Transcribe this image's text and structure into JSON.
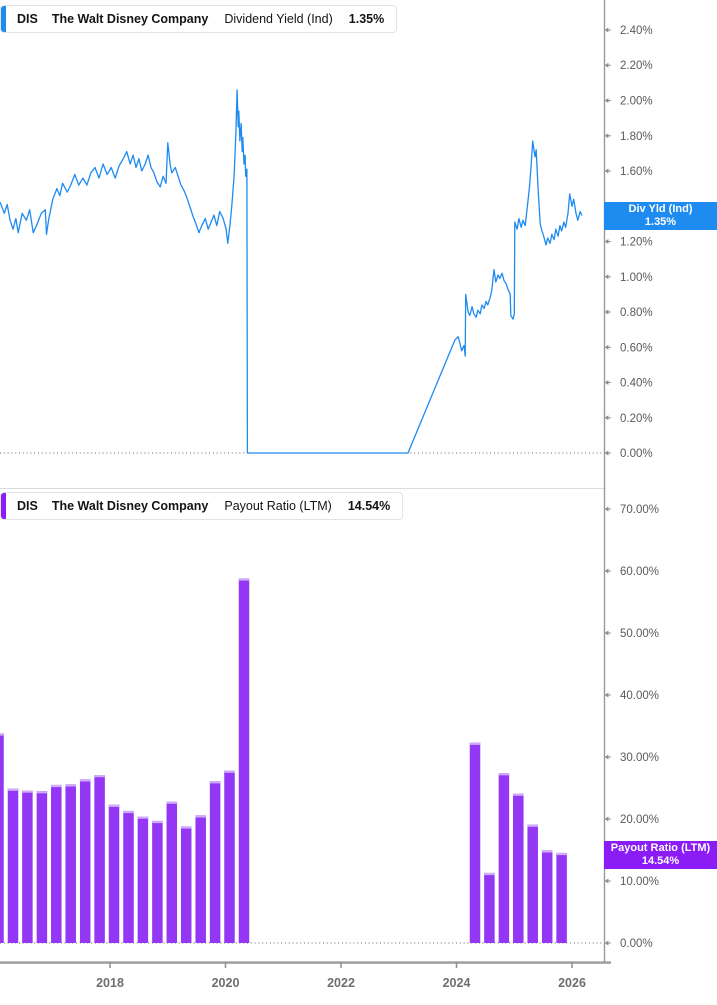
{
  "panels": [
    {
      "id": "dividend-yield",
      "header": {
        "ticker": "DIS",
        "company": "The Walt Disney Company",
        "metric": "Dividend Yield (Ind)",
        "value": "1.35%"
      },
      "badge": {
        "title": "Div Yld (Ind)",
        "value": "1.35%"
      },
      "accent_color": "#1e8bf0"
    },
    {
      "id": "payout-ratio",
      "header": {
        "ticker": "DIS",
        "company": "The Walt Disney Company",
        "metric": "Payout Ratio (LTM)",
        "value": "14.54%"
      },
      "badge": {
        "title": "Payout Ratio (LTM)",
        "value": "14.54%"
      },
      "accent_color": "#8b1cf5"
    }
  ],
  "axis_style": {
    "tick_label_color": "#5a5a5a",
    "year_label_color": "#6f6f6f",
    "axis_line_color": "#9a9a9a",
    "separator_color": "#dcdcdc",
    "zero_line_color": "#666666"
  },
  "chart_data": [
    {
      "type": "line",
      "title": "DIS Dividend Yield (Ind)",
      "name": "Div Yld (Ind)",
      "unit": "%",
      "color": "#1e8bf0",
      "last_value": 1.35,
      "ylim": [
        0,
        2.4
      ],
      "y_ticks": [
        0,
        0.2,
        0.4,
        0.6,
        0.8,
        1.0,
        1.2,
        1.4,
        1.6,
        1.8,
        2.0,
        2.2,
        2.4
      ],
      "y_tick_labels": [
        "0.00%",
        "0.20%",
        "0.40%",
        "0.60%",
        "0.80%",
        "1.00%",
        "1.20%",
        "1.40%",
        "1.60%",
        "1.80%",
        "2.00%",
        "2.20%",
        "2.40%"
      ],
      "zero_line_dotted": true,
      "grid": false,
      "legend_position": "top-left",
      "points": [
        [
          2016.1,
          1.42
        ],
        [
          2016.17,
          1.36
        ],
        [
          2016.22,
          1.41
        ],
        [
          2016.27,
          1.32
        ],
        [
          2016.32,
          1.27
        ],
        [
          2016.37,
          1.33
        ],
        [
          2016.41,
          1.25
        ],
        [
          2016.48,
          1.36
        ],
        [
          2016.55,
          1.32
        ],
        [
          2016.61,
          1.38
        ],
        [
          2016.67,
          1.25
        ],
        [
          2016.74,
          1.3
        ],
        [
          2016.81,
          1.36
        ],
        [
          2016.88,
          1.38
        ],
        [
          2016.9,
          1.24
        ],
        [
          2016.94,
          1.33
        ],
        [
          2017.01,
          1.44
        ],
        [
          2017.08,
          1.5
        ],
        [
          2017.13,
          1.46
        ],
        [
          2017.18,
          1.53
        ],
        [
          2017.26,
          1.48
        ],
        [
          2017.32,
          1.52
        ],
        [
          2017.39,
          1.58
        ],
        [
          2017.46,
          1.52
        ],
        [
          2017.53,
          1.56
        ],
        [
          2017.6,
          1.52
        ],
        [
          2017.67,
          1.59
        ],
        [
          2017.74,
          1.62
        ],
        [
          2017.81,
          1.56
        ],
        [
          2017.88,
          1.64
        ],
        [
          2017.95,
          1.58
        ],
        [
          2018.02,
          1.62
        ],
        [
          2018.09,
          1.56
        ],
        [
          2018.16,
          1.63
        ],
        [
          2018.23,
          1.67
        ],
        [
          2018.29,
          1.71
        ],
        [
          2018.35,
          1.64
        ],
        [
          2018.4,
          1.69
        ],
        [
          2018.45,
          1.62
        ],
        [
          2018.5,
          1.67
        ],
        [
          2018.55,
          1.6
        ],
        [
          2018.61,
          1.64
        ],
        [
          2018.66,
          1.69
        ],
        [
          2018.71,
          1.62
        ],
        [
          2018.76,
          1.59
        ],
        [
          2018.81,
          1.54
        ],
        [
          2018.87,
          1.51
        ],
        [
          2018.92,
          1.57
        ],
        [
          2018.97,
          1.53
        ],
        [
          2019.0,
          1.76
        ],
        [
          2019.04,
          1.64
        ],
        [
          2019.07,
          1.59
        ],
        [
          2019.13,
          1.62
        ],
        [
          2019.18,
          1.57
        ],
        [
          2019.23,
          1.52
        ],
        [
          2019.28,
          1.49
        ],
        [
          2019.33,
          1.45
        ],
        [
          2019.39,
          1.39
        ],
        [
          2019.44,
          1.34
        ],
        [
          2019.49,
          1.3
        ],
        [
          2019.54,
          1.25
        ],
        [
          2019.59,
          1.29
        ],
        [
          2019.65,
          1.33
        ],
        [
          2019.7,
          1.27
        ],
        [
          2019.75,
          1.31
        ],
        [
          2019.8,
          1.35
        ],
        [
          2019.85,
          1.29
        ],
        [
          2019.9,
          1.37
        ],
        [
          2019.96,
          1.33
        ],
        [
          2020.01,
          1.27
        ],
        [
          2020.04,
          1.19
        ],
        [
          2020.08,
          1.3
        ],
        [
          2020.11,
          1.41
        ],
        [
          2020.15,
          1.58
        ],
        [
          2020.18,
          1.82
        ],
        [
          2020.2,
          2.06
        ],
        [
          2020.22,
          1.85
        ],
        [
          2020.23,
          1.94
        ],
        [
          2020.25,
          1.77
        ],
        [
          2020.27,
          1.87
        ],
        [
          2020.29,
          1.71
        ],
        [
          2020.3,
          1.79
        ],
        [
          2020.32,
          1.64
        ],
        [
          2020.34,
          1.69
        ],
        [
          2020.35,
          1.57
        ],
        [
          2020.37,
          1.61
        ],
        [
          2020.38,
          0.0
        ],
        [
          2023.16,
          0.0
        ],
        [
          2023.97,
          0.64
        ],
        [
          2024.03,
          0.66
        ],
        [
          2024.06,
          0.62
        ],
        [
          2024.09,
          0.58
        ],
        [
          2024.13,
          0.61
        ],
        [
          2024.15,
          0.55
        ],
        [
          2024.16,
          0.9
        ],
        [
          2024.2,
          0.8
        ],
        [
          2024.23,
          0.78
        ],
        [
          2024.27,
          0.83
        ],
        [
          2024.3,
          0.79
        ],
        [
          2024.34,
          0.77
        ],
        [
          2024.37,
          0.81
        ],
        [
          2024.41,
          0.79
        ],
        [
          2024.44,
          0.84
        ],
        [
          2024.48,
          0.82
        ],
        [
          2024.51,
          0.86
        ],
        [
          2024.54,
          0.84
        ],
        [
          2024.58,
          0.88
        ],
        [
          2024.61,
          0.92
        ],
        [
          2024.65,
          1.04
        ],
        [
          2024.68,
          0.97
        ],
        [
          2024.72,
          1.01
        ],
        [
          2024.75,
          0.99
        ],
        [
          2024.79,
          1.02
        ],
        [
          2024.82,
          0.98
        ],
        [
          2024.86,
          0.96
        ],
        [
          2024.89,
          0.93
        ],
        [
          2024.93,
          0.9
        ],
        [
          2024.94,
          0.78
        ],
        [
          2024.98,
          0.76
        ],
        [
          2025.0,
          0.79
        ],
        [
          2025.01,
          1.31
        ],
        [
          2025.05,
          1.27
        ],
        [
          2025.08,
          1.33
        ],
        [
          2025.12,
          1.28
        ],
        [
          2025.15,
          1.32
        ],
        [
          2025.19,
          1.29
        ],
        [
          2025.22,
          1.38
        ],
        [
          2025.26,
          1.5
        ],
        [
          2025.29,
          1.62
        ],
        [
          2025.32,
          1.77
        ],
        [
          2025.36,
          1.68
        ],
        [
          2025.38,
          1.72
        ],
        [
          2025.41,
          1.52
        ],
        [
          2025.45,
          1.3
        ],
        [
          2025.48,
          1.26
        ],
        [
          2025.51,
          1.23
        ],
        [
          2025.55,
          1.18
        ],
        [
          2025.58,
          1.22
        ],
        [
          2025.62,
          1.19
        ],
        [
          2025.65,
          1.24
        ],
        [
          2025.69,
          1.21
        ],
        [
          2025.72,
          1.27
        ],
        [
          2025.76,
          1.23
        ],
        [
          2025.79,
          1.29
        ],
        [
          2025.82,
          1.26
        ],
        [
          2025.86,
          1.31
        ],
        [
          2025.89,
          1.28
        ],
        [
          2025.93,
          1.36
        ],
        [
          2025.96,
          1.47
        ],
        [
          2026.0,
          1.4
        ],
        [
          2026.03,
          1.44
        ],
        [
          2026.07,
          1.36
        ],
        [
          2026.1,
          1.32
        ],
        [
          2026.14,
          1.37
        ],
        [
          2026.17,
          1.35
        ]
      ]
    },
    {
      "type": "bar",
      "title": "DIS Payout Ratio (LTM)",
      "name": "Payout Ratio (LTM)",
      "unit": "%",
      "color": "#9437f5",
      "bar_cap_color": "#cfadf8",
      "last_value": 14.54,
      "ylim": [
        0,
        70
      ],
      "y_ticks": [
        0,
        10,
        20,
        30,
        40,
        50,
        60,
        70
      ],
      "y_tick_labels": [
        "0.00%",
        "10.00%",
        "20.00%",
        "30.00%",
        "40.00%",
        "50.00%",
        "60.00%",
        "70.00%"
      ],
      "zero_line_dotted": true,
      "grid": false,
      "x_tick_labels": [
        "2018",
        "2020",
        "2022",
        "2024",
        "2026"
      ],
      "x_tick_years": [
        2018,
        2020,
        2022,
        2024,
        2026
      ],
      "bars": [
        [
          2016.07,
          33.8
        ],
        [
          2016.32,
          24.9
        ],
        [
          2016.57,
          24.6
        ],
        [
          2016.82,
          24.5
        ],
        [
          2017.07,
          25.5
        ],
        [
          2017.32,
          25.6
        ],
        [
          2017.57,
          26.4
        ],
        [
          2017.82,
          27.1
        ],
        [
          2018.07,
          22.3
        ],
        [
          2018.32,
          21.3
        ],
        [
          2018.57,
          20.4
        ],
        [
          2018.82,
          19.7
        ],
        [
          2019.07,
          22.8
        ],
        [
          2019.32,
          18.8
        ],
        [
          2019.57,
          20.6
        ],
        [
          2019.82,
          26.1
        ],
        [
          2020.07,
          27.8
        ],
        [
          2020.32,
          58.8
        ],
        [
          2024.32,
          32.3
        ],
        [
          2024.57,
          11.3
        ],
        [
          2024.82,
          27.4
        ],
        [
          2025.07,
          24.1
        ],
        [
          2025.32,
          19.1
        ],
        [
          2025.57,
          14.95
        ],
        [
          2025.82,
          14.54
        ]
      ]
    }
  ]
}
